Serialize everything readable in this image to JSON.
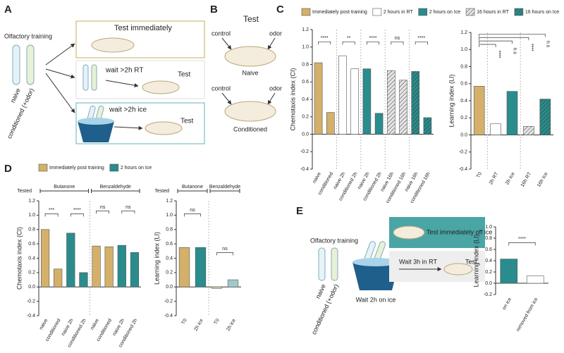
{
  "panel_a": {
    "letter": "A",
    "title": "Olfactory training",
    "tubes": [
      "naive",
      "conditioned (+odor)"
    ],
    "paths": [
      {
        "step": "Test immediately"
      },
      {
        "step": "wait >2h RT",
        "result": "Test"
      },
      {
        "step": "wait >2h ice",
        "result": "Test"
      }
    ]
  },
  "panel_b": {
    "letter": "B",
    "title": "Test",
    "plates": [
      {
        "left": "control",
        "right": "odor",
        "name": "Naive"
      },
      {
        "left": "control",
        "right": "odor",
        "name": "Conditioned"
      }
    ]
  },
  "panel_e": {
    "letter": "E",
    "title": "Olfactory training",
    "tubes": [
      "naive",
      "conditioned (+odor)"
    ],
    "ice": "Wait 2h on ice",
    "top": "Test immediately off ice",
    "bottom": "Wait 3h in RT",
    "result": "Test"
  },
  "panel_labels": {
    "c": "C",
    "d": "D"
  },
  "chart_data": [
    {
      "type": "bar",
      "ylabel": "Chemotaxis index (CI)",
      "categories": [
        "naive",
        "conditioned",
        "naive 2h",
        "conditioned 2h",
        "naive 2h",
        "conditioned 2h",
        "naive 16h",
        "conditioned 16h",
        "naive 16h",
        "conditioned 16h"
      ],
      "series": [
        {
          "name": "Immediately post training",
          "color": "#d4b06a",
          "hatched": false,
          "values": [
            0.82,
            0.25,
            null,
            null,
            null,
            null,
            null,
            null,
            null,
            null
          ]
        },
        {
          "name": "2 hours in RT",
          "color": "#ffffff",
          "hatched": false,
          "values": [
            null,
            null,
            0.9,
            0.75,
            null,
            null,
            null,
            null,
            null,
            null
          ]
        },
        {
          "name": "2 hours on Ice",
          "color": "#2a8c8c",
          "hatched": false,
          "values": [
            null,
            null,
            null,
            null,
            0.75,
            0.24,
            null,
            null,
            null,
            null
          ]
        },
        {
          "name": "16 hours in RT",
          "color": "#e6e6e6",
          "hatched": true,
          "values": [
            null,
            null,
            null,
            null,
            null,
            null,
            0.73,
            0.62,
            null,
            null
          ]
        },
        {
          "name": "16 hours on Ice",
          "color": "#2a8c8c",
          "hatched": true,
          "values": [
            null,
            null,
            null,
            null,
            null,
            null,
            null,
            null,
            0.72,
            0.19
          ]
        }
      ],
      "annotations": [
        "****",
        "**",
        "****",
        "ns",
        "****"
      ],
      "ylim": [
        -0.4,
        1.2
      ],
      "yticks": [
        -0.4,
        -0.2,
        {
          "value": 0,
          "label": "0.0"
        },
        0.2,
        0.4,
        0.6,
        0.8,
        {
          "value": 1,
          "label": "1.0"
        },
        1.2
      ]
    },
    {
      "type": "bar",
      "ylabel": "Learning index (LI)",
      "categories": [
        "T0",
        "2h RT",
        "2h Ice",
        "16h RT",
        "16h Ice"
      ],
      "values": [
        0.57,
        0.13,
        0.51,
        0.1,
        0.42
      ],
      "colors": [
        "#d4b06a",
        "#ffffff",
        "#2a8c8c",
        "#e6e6e6",
        "#2a8c8c"
      ],
      "hatched": [
        false,
        false,
        false,
        true,
        true
      ],
      "annotations": [
        "****",
        "n.s",
        "****",
        "n.s"
      ],
      "ylim": [
        -0.4,
        1.2
      ],
      "yticks": [
        -0.4,
        -0.2,
        {
          "value": 0,
          "label": "0.0"
        },
        0.2,
        0.4,
        0.6,
        0.8,
        {
          "value": 1,
          "label": "1.0"
        },
        1.2
      ]
    },
    {
      "type": "bar",
      "ylabel": "Chemotaxis index (CI)",
      "categories": [
        "naive",
        "conditioned",
        "naive 2h",
        "conditioned 2h",
        "naive",
        "conditioned",
        "naive 2h",
        "conditioned 2h"
      ],
      "series": [
        {
          "name": "Immediately post training",
          "color": "#d4b06a",
          "hatched": false,
          "values": [
            0.8,
            0.25,
            null,
            null,
            0.57,
            0.56,
            null,
            null
          ]
        },
        {
          "name": "2 hours on Ice",
          "color": "#2a8c8c",
          "hatched": false,
          "values": [
            null,
            null,
            0.75,
            0.2,
            null,
            null,
            0.58,
            0.48
          ]
        }
      ],
      "group_title": "Tested",
      "groups": [
        "Butanone",
        "Benzaldehyde"
      ],
      "annotations": [
        "***",
        "****",
        "ns",
        "ns"
      ],
      "ylim": [
        -0.4,
        1.2
      ],
      "yticks": [
        -0.4,
        -0.2,
        {
          "value": 0,
          "label": "0.0"
        },
        0.2,
        0.4,
        0.6,
        0.8,
        {
          "value": 1,
          "label": "1.0"
        },
        1.2
      ]
    },
    {
      "type": "bar",
      "ylabel": "Learning index (LI)",
      "categories": [
        "T0",
        "2h ice",
        "T0",
        "2h ice"
      ],
      "values": [
        0.55,
        0.55,
        -0.02,
        0.1
      ],
      "colors": [
        "#d4b06a",
        "#2a8c8c",
        "#e8d8b0",
        "#9fcaca"
      ],
      "hatched": [
        false,
        false,
        false,
        false
      ],
      "group_title": "Tested",
      "groups": [
        "Butanone",
        "Benzaldehyde"
      ],
      "annotations": [
        "ns",
        "ns"
      ],
      "ylim": [
        -0.4,
        1.2
      ],
      "yticks": [
        -0.4,
        -0.2,
        {
          "value": 0,
          "label": "0.0"
        },
        0.2,
        0.4,
        0.6,
        0.8,
        {
          "value": 1,
          "label": "1.0"
        },
        1.2
      ]
    },
    {
      "type": "bar",
      "ylabel": "Learning index (LI)",
      "categories": [
        "on ice",
        "removed from ice"
      ],
      "values": [
        0.43,
        0.13
      ],
      "colors": [
        "#2a8c8c",
        "#ffffff"
      ],
      "hatched": [
        false,
        false
      ],
      "annotations": [
        "****"
      ],
      "ylim": [
        -0.2,
        1.0
      ],
      "yticks": [
        -0.2,
        {
          "value": 0,
          "label": "0.0"
        },
        0.2,
        0.4,
        0.6,
        0.8,
        {
          "value": 1,
          "label": "1.0"
        }
      ]
    }
  ]
}
